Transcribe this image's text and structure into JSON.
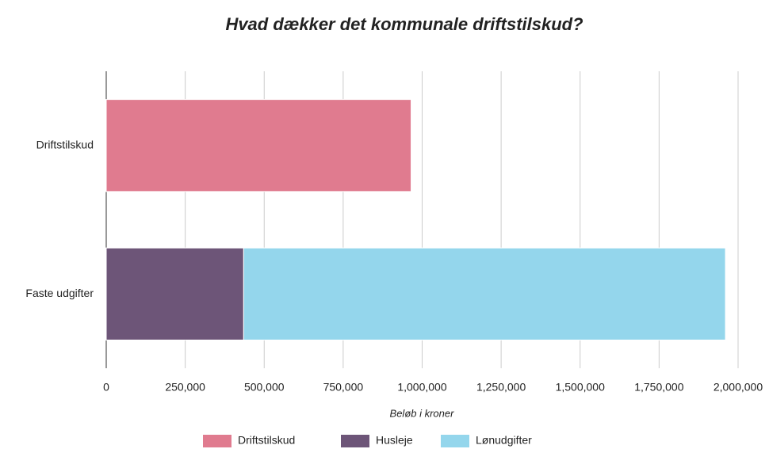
{
  "chart_data": {
    "type": "bar",
    "orientation": "horizontal",
    "stacked": true,
    "title": "Hvad dækker det kommunale driftstilskud?",
    "x_label": "Beløb i kroner",
    "categories": [
      "Driftstilskud",
      "Faste udgifter"
    ],
    "series": [
      {
        "name": "Driftstilskud",
        "color": "#e07b8f",
        "values": [
          965000,
          null
        ]
      },
      {
        "name": "Husleje",
        "color": "#6d5578",
        "values": [
          null,
          435000
        ]
      },
      {
        "name": "Lønudgifter",
        "color": "#94d6ec",
        "values": [
          null,
          1525000
        ]
      }
    ],
    "xlim": [
      0,
      2000000
    ],
    "xticks": [
      0,
      {
        "value": 250000,
        "label": "250,000"
      },
      {
        "value": 500000,
        "label": "500,000"
      },
      {
        "value": 750000,
        "label": "750,000"
      },
      {
        "value": 1000000,
        "label": "1,000,000"
      },
      {
        "value": 1250000,
        "label": "1,250,000"
      },
      {
        "value": 1500000,
        "label": "1,500,000"
      },
      {
        "value": 1750000,
        "label": "1,750,000"
      },
      {
        "value": 2000000,
        "label": "2,000,000"
      }
    ],
    "grid": true,
    "legend": "bottom"
  }
}
